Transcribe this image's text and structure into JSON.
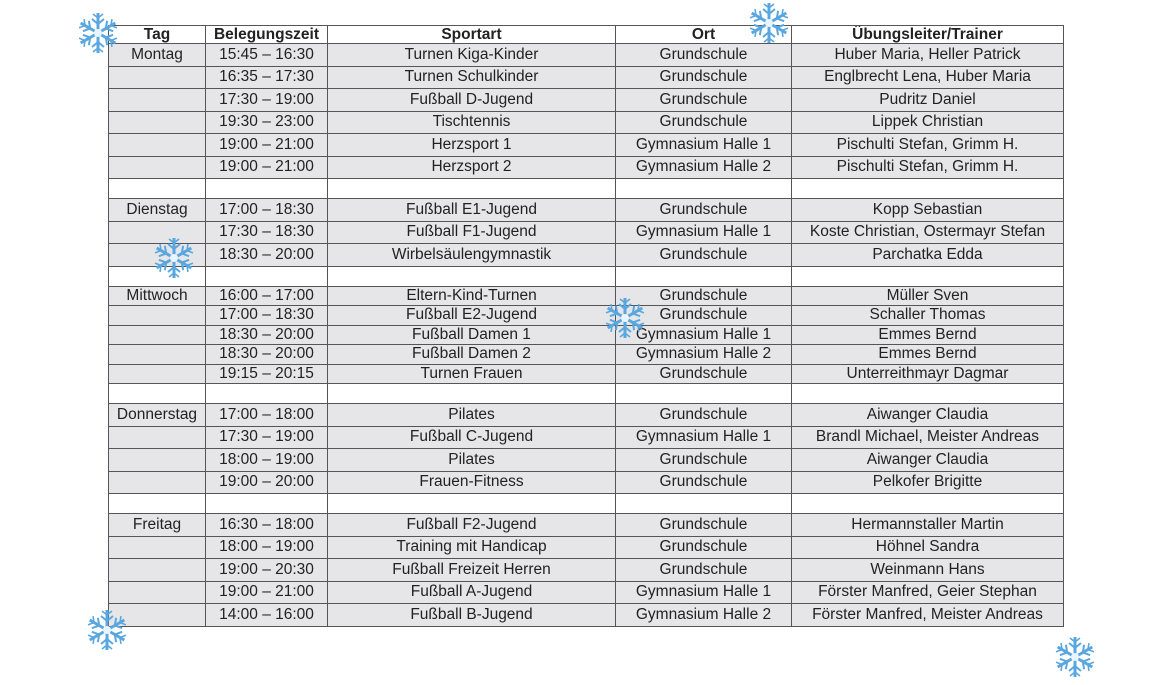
{
  "table": {
    "headers": [
      "Tag",
      "Belegungszeit",
      "Sportart",
      "Ort",
      "Übungsleiter/Trainer"
    ],
    "groups": [
      {
        "day": "Montag",
        "rows": [
          {
            "time": "15:45 – 16:30",
            "sport": "Turnen Kiga-Kinder",
            "place": "Grundschule",
            "trainer": "Huber Maria, Heller Patrick"
          },
          {
            "time": "16:35 – 17:30",
            "sport": "Turnen Schulkinder",
            "place": "Grundschule",
            "trainer": "Englbrecht Lena, Huber Maria"
          },
          {
            "time": "17:30 – 19:00",
            "sport": "Fußball D-Jugend",
            "place": "Grundschule",
            "trainer": "Pudritz Daniel"
          },
          {
            "time": "19:30 – 23:00",
            "sport": "Tischtennis",
            "place": "Grundschule",
            "trainer": "Lippek Christian"
          },
          {
            "time": "19:00 – 21:00",
            "sport": "Herzsport 1",
            "place": "Gymnasium Halle 1",
            "trainer": "Pischulti Stefan, Grimm H."
          },
          {
            "time": "19:00 – 21:00",
            "sport": "Herzsport 2",
            "place": "Gymnasium Halle 2",
            "trainer": "Pischulti Stefan, Grimm H."
          }
        ]
      },
      {
        "day": "Dienstag",
        "rows": [
          {
            "time": "17:00 – 18:30",
            "sport": "Fußball E1-Jugend",
            "place": "Grundschule",
            "trainer": "Kopp Sebastian"
          },
          {
            "time": "17:30 – 18:30",
            "sport": "Fußball F1-Jugend",
            "place": "Gymnasium Halle 1",
            "trainer": "Koste Christian, Ostermayr Stefan"
          },
          {
            "time": "18:30 – 20:00",
            "sport": "Wirbelsäulengymnastik",
            "place": "Grundschule",
            "trainer": "Parchatka Edda"
          }
        ]
      },
      {
        "day": "Mittwoch",
        "rows": [
          {
            "time": "16:00 – 17:00",
            "sport": "Eltern-Kind-Turnen",
            "place": "Grundschule",
            "trainer": "Müller Sven"
          },
          {
            "time": "17:00 – 18:30",
            "sport": "Fußball E2-Jugend",
            "place": "Grundschule",
            "trainer": "Schaller Thomas"
          },
          {
            "time": "18:30 – 20:00",
            "sport": "Fußball Damen 1",
            "place": "Gymnasium Halle 1",
            "trainer": "Emmes Bernd"
          },
          {
            "time": "18:30 – 20:00",
            "sport": "Fußball Damen 2",
            "place": "Gymnasium Halle 2",
            "trainer": "Emmes Bernd"
          },
          {
            "time": "19:15 – 20:15",
            "sport": "Turnen Frauen",
            "place": "Grundschule",
            "trainer": "Unterreithmayr Dagmar"
          }
        ]
      },
      {
        "day": "Donnerstag",
        "rows": [
          {
            "time": "17:00 – 18:00",
            "sport": "Pilates",
            "place": "Grundschule",
            "trainer": "Aiwanger Claudia"
          },
          {
            "time": "17:30 – 19:00",
            "sport": "Fußball C-Jugend",
            "place": "Gymnasium Halle 1",
            "trainer": "Brandl Michael, Meister Andreas"
          },
          {
            "time": "18:00 – 19:00",
            "sport": "Pilates",
            "place": "Grundschule",
            "trainer": "Aiwanger Claudia"
          },
          {
            "time": "19:00 – 20:00",
            "sport": "Frauen-Fitness",
            "place": "Grundschule",
            "trainer": "Pelkofer Brigitte"
          }
        ]
      },
      {
        "day": "Freitag",
        "rows": [
          {
            "time": "16:30 – 18:00",
            "sport": "Fußball F2-Jugend",
            "place": "Grundschule",
            "trainer": "Hermannstaller Martin"
          },
          {
            "time": "18:00 – 19:00",
            "sport": "Training mit Handicap",
            "place": "Grundschule",
            "trainer": "Höhnel Sandra"
          },
          {
            "time": "19:00 – 20:30",
            "sport": "Fußball Freizeit Herren",
            "place": "Grundschule",
            "trainer": "Weinmann Hans"
          },
          {
            "time": "19:00 – 21:00",
            "sport": "Fußball A-Jugend",
            "place": "Gymnasium Halle 1",
            "trainer": "Förster Manfred, Geier Stephan"
          },
          {
            "time": "14:00 – 16:00",
            "sport": "Fußball B-Jugend",
            "place": "Gymnasium Halle 2",
            "trainer": "Förster Manfred, Meister Andreas"
          }
        ]
      }
    ]
  },
  "colors": {
    "row_fill": "#e6e6e8",
    "border": "#555555",
    "snowflake": "#5aa7e0"
  },
  "decorations": {
    "icon": "snowflake-icon"
  }
}
